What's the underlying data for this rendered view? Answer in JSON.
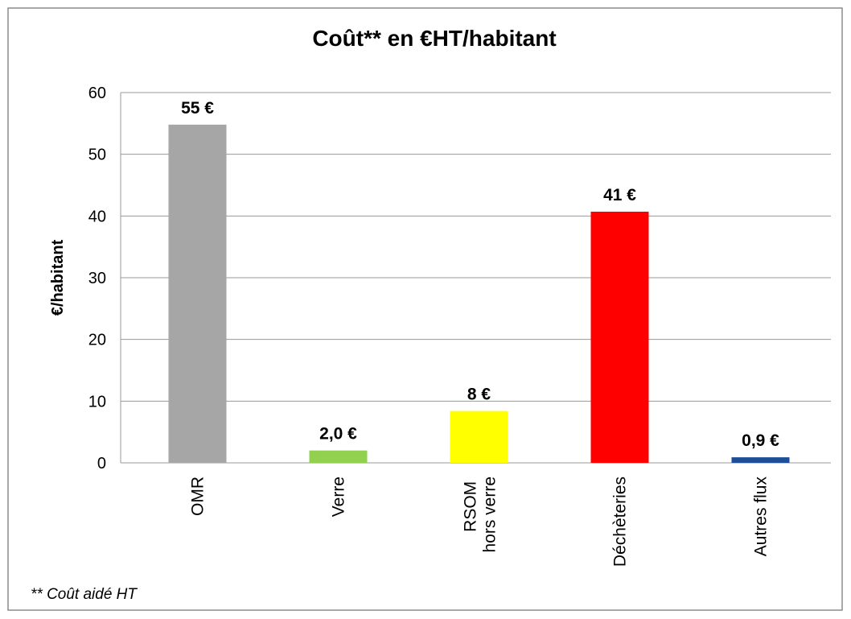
{
  "chart_data": {
    "type": "bar",
    "title": "Coût** en €HT/habitant",
    "y_label": "€/habitant",
    "note": "** Coût aidé HT",
    "categories": [
      "OMR",
      "Verre",
      "RSOM hors verre",
      "Déchèteries",
      "Autres flux"
    ],
    "values": [
      54.8,
      2.0,
      8.4,
      40.7,
      0.9
    ],
    "value_labels": [
      "55 €",
      "2,0 €",
      "8 €",
      "41 €",
      "0,9 €"
    ],
    "colors": [
      "#a6a6a6",
      "#92d050",
      "#ffff00",
      "#ff0000",
      "#1f4e99"
    ],
    "ylim": [
      0,
      60
    ],
    "yticks": [
      0,
      10,
      20,
      30,
      40,
      50,
      60
    ],
    "grid": true
  }
}
